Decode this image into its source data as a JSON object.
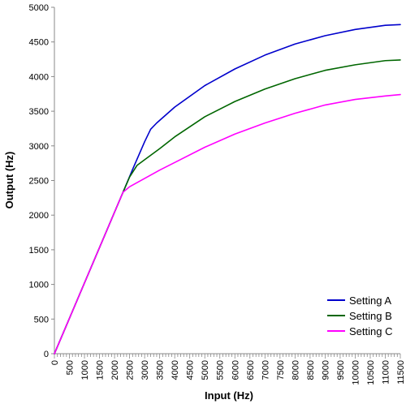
{
  "chart_data": {
    "type": "line",
    "title": "",
    "xlabel": "Input (Hz)",
    "ylabel": "Output (Hz)",
    "xlim": [
      0,
      11500
    ],
    "ylim": [
      0,
      5000
    ],
    "grid": false,
    "legend_position": "bottom-right",
    "x_ticks": [
      "0",
      "500",
      "1000",
      "1500",
      "2000",
      "2500",
      "3000",
      "3500",
      "4000",
      "4500",
      "5000",
      "5500",
      "6000",
      "6500",
      "7000",
      "7500",
      "8000",
      "8500",
      "9000",
      "9500",
      "10000",
      "10500",
      "11000",
      "11500"
    ],
    "y_ticks": [
      "0",
      "500",
      "1000",
      "1500",
      "2000",
      "2500",
      "3000",
      "3500",
      "4000",
      "4500",
      "5000"
    ],
    "series": [
      {
        "name": "Setting A",
        "color": "#0000cc",
        "x": [
          0,
          2280,
          2600,
          3000,
          3200,
          3400,
          4000,
          5000,
          6000,
          7000,
          8000,
          9000,
          10000,
          11000,
          11500
        ],
        "y": [
          0,
          2330,
          2660,
          3060,
          3240,
          3330,
          3560,
          3870,
          4110,
          4310,
          4470,
          4590,
          4680,
          4740,
          4750
        ]
      },
      {
        "name": "Setting B",
        "color": "#006600",
        "x": [
          0,
          2280,
          2500,
          2750,
          3000,
          3500,
          4000,
          5000,
          6000,
          7000,
          8000,
          9000,
          10000,
          11000,
          11500
        ],
        "y": [
          0,
          2330,
          2550,
          2720,
          2800,
          2960,
          3130,
          3420,
          3640,
          3820,
          3970,
          4090,
          4170,
          4230,
          4240
        ]
      },
      {
        "name": "Setting C",
        "color": "#ff00ff",
        "x": [
          0,
          2280,
          2500,
          3000,
          3500,
          4000,
          5000,
          6000,
          7000,
          8000,
          9000,
          10000,
          11000,
          11500
        ],
        "y": [
          0,
          2330,
          2410,
          2530,
          2650,
          2760,
          2980,
          3170,
          3330,
          3470,
          3590,
          3670,
          3720,
          3740
        ]
      }
    ]
  }
}
